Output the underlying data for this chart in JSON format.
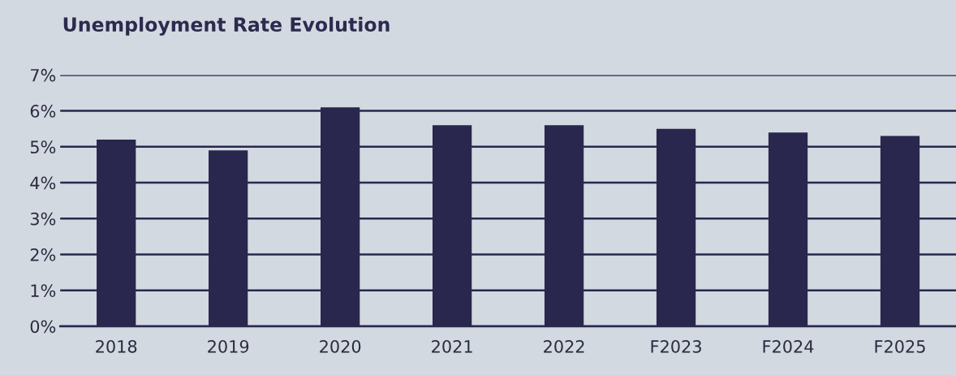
{
  "chart_data": {
    "type": "bar",
    "title": "Unemployment Rate Evolution",
    "categories": [
      "2018",
      "2019",
      "2020",
      "2021",
      "2022",
      "F2023",
      "F2024",
      "F2025"
    ],
    "values": [
      5.2,
      4.9,
      6.1,
      5.6,
      5.6,
      5.5,
      5.4,
      5.3
    ],
    "color": "#29274d",
    "ylim": [
      0,
      7
    ],
    "yticks": [
      {
        "value": 0,
        "label": "0%"
      },
      {
        "value": 1,
        "label": "1%"
      },
      {
        "value": 2,
        "label": "2%"
      },
      {
        "value": 3,
        "label": "3%"
      },
      {
        "value": 4,
        "label": "4%"
      },
      {
        "value": 5,
        "label": "5%"
      },
      {
        "value": 6,
        "label": "6%"
      },
      {
        "value": 7,
        "label": "7%"
      }
    ],
    "grid": "y",
    "legend": false
  }
}
